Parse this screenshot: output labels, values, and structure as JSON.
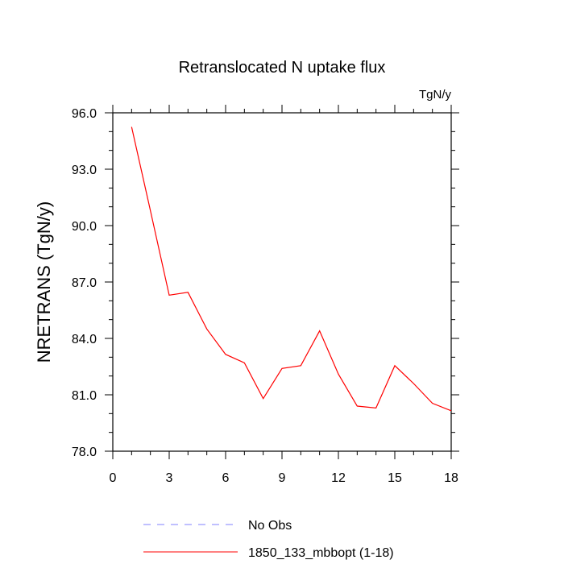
{
  "chart_data": {
    "type": "line",
    "title": "Retranslocated N uptake flux",
    "units": "TgN/y",
    "ylabel": "NRETRANS  (TgN/y)",
    "xlabel": "",
    "xlim": [
      0,
      18
    ],
    "ylim": [
      78.0,
      96.0
    ],
    "xticks": [
      0,
      3,
      6,
      9,
      12,
      15,
      18
    ],
    "xtick_labels": [
      "0",
      "3",
      "6",
      "9",
      "12",
      "15",
      "18"
    ],
    "yticks": [
      78.0,
      81.0,
      84.0,
      87.0,
      90.0,
      93.0,
      96.0
    ],
    "ytick_labels": [
      "78.0",
      "81.0",
      "84.0",
      "87.0",
      "90.0",
      "93.0",
      "96.0"
    ],
    "grid": false,
    "series": [
      {
        "name": "1850_133_mbbopt (1-18)",
        "color": "#ff0000",
        "dash": "solid",
        "x": [
          1,
          2,
          3,
          4,
          5,
          6,
          7,
          8,
          9,
          10,
          11,
          12,
          13,
          14,
          15,
          16,
          17,
          18
        ],
        "values": [
          95.25,
          90.8,
          86.3,
          86.45,
          84.5,
          83.15,
          82.7,
          80.8,
          82.4,
          82.55,
          84.4,
          82.1,
          80.4,
          80.3,
          82.55,
          81.6,
          80.55,
          80.15
        ]
      }
    ],
    "legend": [
      {
        "label": "No Obs",
        "color": "#8080ff",
        "dash": "dashed"
      },
      {
        "label": "1850_133_mbbopt (1-18)",
        "color": "#ff0000",
        "dash": "solid"
      }
    ]
  }
}
